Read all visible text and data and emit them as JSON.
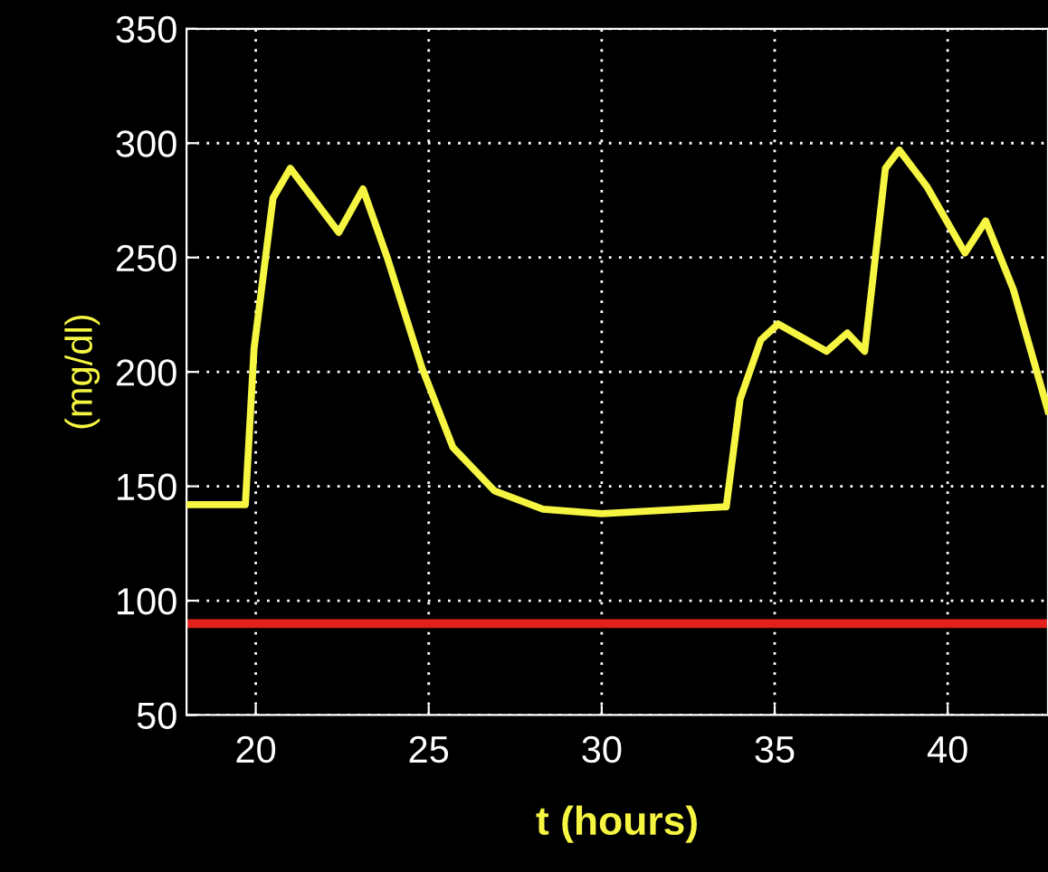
{
  "chart_data": {
    "type": "line",
    "xlabel": "t (hours)",
    "ylabel": "(mg/dl)",
    "series": [
      {
        "color": "#f5f542",
        "x": [
          18.0,
          19.7,
          19.95,
          20.5,
          21.0,
          22.4,
          23.1,
          23.8,
          24.8,
          25.7,
          26.9,
          28.3,
          30.0,
          33.5,
          33.6,
          34.0,
          34.6,
          35.1,
          36.5,
          37.1,
          37.6,
          37.9,
          38.2,
          38.6,
          39.4,
          40.5,
          41.1,
          41.9,
          42.9
        ],
        "values": [
          142,
          142,
          210,
          276,
          289,
          261,
          280,
          250,
          202,
          167,
          148,
          140,
          138,
          141,
          141,
          188,
          214,
          221,
          209,
          217,
          209,
          249,
          289,
          297,
          281,
          252,
          266,
          236,
          183
        ]
      }
    ],
    "ref_lines": [
      {
        "axis": "y",
        "value": 90,
        "color": "#e3201b"
      }
    ],
    "xlim": [
      18.0,
      42.9
    ],
    "ylim": [
      50,
      350
    ],
    "xticks": [
      20,
      25,
      30,
      35,
      40
    ],
    "yticks": [
      50,
      100,
      150,
      200,
      250,
      300,
      350
    ],
    "grid": true,
    "legend": false,
    "marker": "none",
    "line_style": "solid"
  }
}
